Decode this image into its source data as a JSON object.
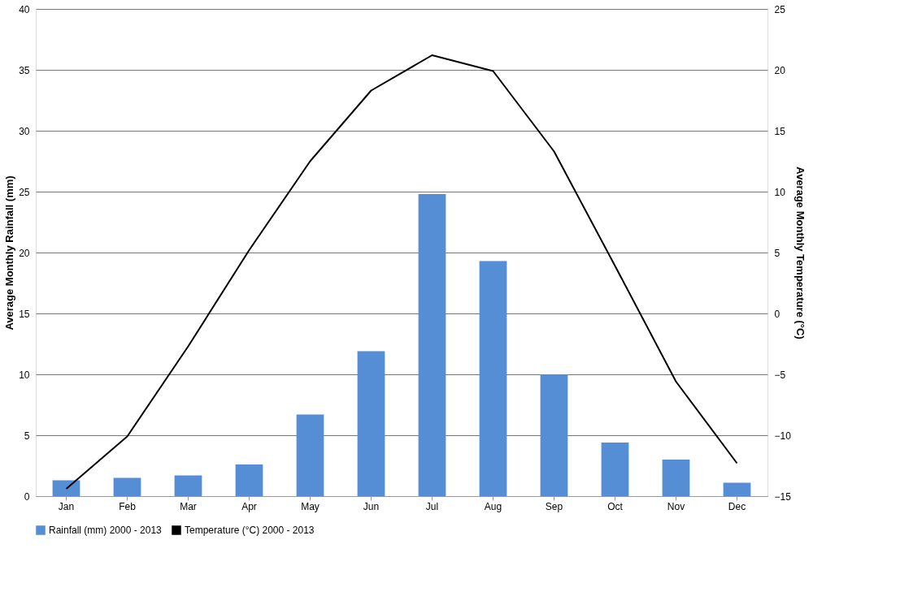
{
  "chart_data": {
    "type": "bar",
    "categories": [
      "Jan",
      "Feb",
      "Mar",
      "Apr",
      "May",
      "Jun",
      "Jul",
      "Aug",
      "Sep",
      "Oct",
      "Nov",
      "Dec"
    ],
    "ylabel": "Average Monthly Rainfall (mm)",
    "y2label": "Average Monthly Temperature (°C)",
    "series": [
      {
        "name": "Rainfall (mm) 2000 - 2013",
        "color": "#558ed5",
        "values": [
          1.3,
          1.5,
          1.7,
          2.6,
          6.7,
          11.9,
          24.8,
          19.3,
          10.0,
          4.4,
          3.0,
          1.1
        ]
      },
      {
        "name": "Temperature (°C) 2000 - 2013",
        "type": "line",
        "axis": "y2",
        "color": "#000000",
        "values": [
          -14.4,
          -10.1,
          -2.7,
          5.2,
          12.5,
          18.3,
          21.2,
          19.9,
          13.3,
          3.9,
          -5.6,
          -12.3
        ]
      }
    ],
    "ylim": [
      0,
      40
    ],
    "yticks": [
      0,
      5,
      10,
      15,
      20,
      25,
      30,
      35,
      40
    ],
    "y2lim": [
      -15,
      25
    ],
    "y2ticks": [
      -15,
      -10,
      -5,
      0,
      5,
      10,
      15,
      20,
      25
    ],
    "grid": "y",
    "legend": "bottom",
    "marker": "none",
    "line_style": "solid"
  }
}
